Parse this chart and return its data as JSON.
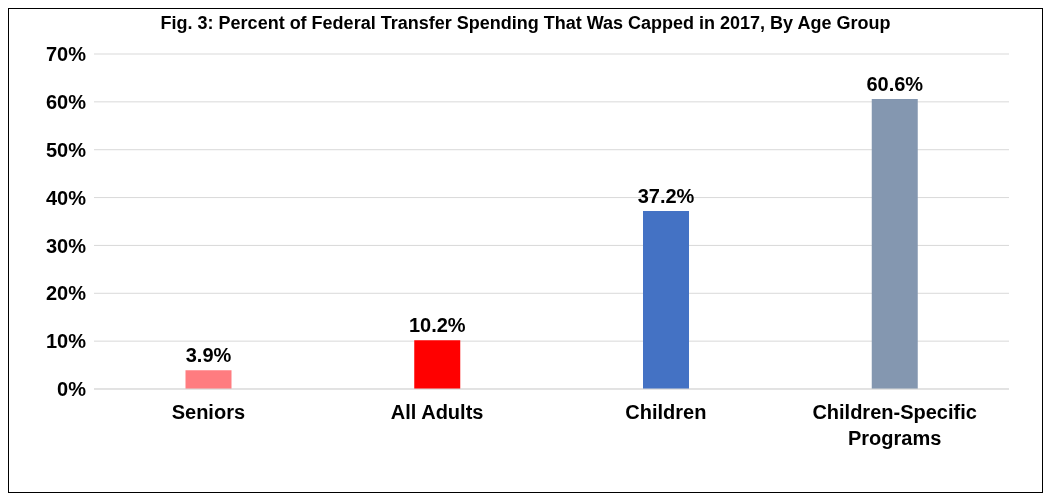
{
  "chart_data": {
    "type": "bar",
    "title": "Fig. 3: Percent of Federal Transfer Spending That Was Capped in 2017, By Age Group",
    "categories": [
      "Seniors",
      "All Adults",
      "Children",
      "Children-Specific Programs"
    ],
    "values": [
      3.9,
      10.2,
      37.2,
      60.6
    ],
    "colors": [
      "#ff7c80",
      "#ff0000",
      "#4472c4",
      "#8497b0"
    ],
    "value_labels": [
      "3.9%",
      "10.2%",
      "37.2%",
      "60.6%"
    ],
    "ylim": [
      0,
      70
    ],
    "yticks": [
      {
        "value": 0,
        "label": "0%"
      },
      {
        "value": 10,
        "label": "10%"
      },
      {
        "value": 20,
        "label": "20%"
      },
      {
        "value": 30,
        "label": "30%"
      },
      {
        "value": 40,
        "label": "40%"
      },
      {
        "value": 50,
        "label": "50%"
      },
      {
        "value": 60,
        "label": "60%"
      },
      {
        "value": 70,
        "label": "70%"
      }
    ],
    "grid": "y",
    "legend": false
  }
}
